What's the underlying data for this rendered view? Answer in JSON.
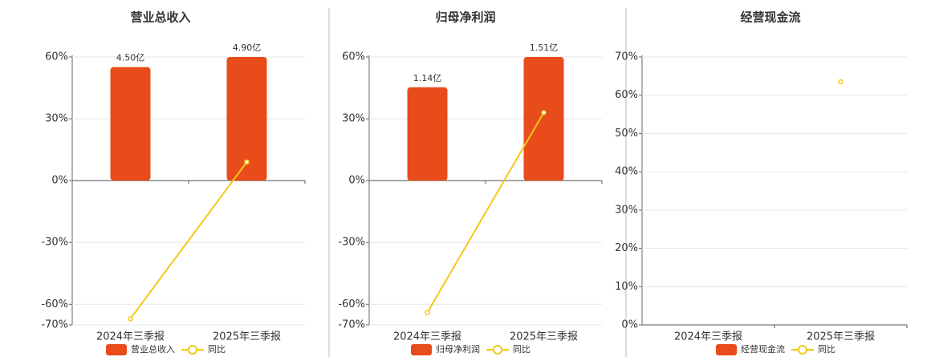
{
  "chart_data": [
    {
      "type": "bar",
      "title": "营业总收入",
      "categories": [
        "2024年三季报",
        "2025年三季报"
      ],
      "series": [
        {
          "name": "营业总收入",
          "color": "#e84c1a",
          "axis": "y2",
          "values": [
            4.5,
            4.9
          ],
          "value_labels": [
            "4.50亿",
            "4.90亿"
          ]
        },
        {
          "name": "同比",
          "color": "#f2c81a",
          "type": "line",
          "values": [
            -67,
            9
          ]
        }
      ],
      "ylim": [
        -70,
        60
      ],
      "yticks": [
        {
          "value": -70,
          "label": "-70%"
        },
        {
          "value": -60,
          "label": "-60%"
        },
        {
          "value": -30,
          "label": "-30%"
        },
        {
          "value": 0,
          "label": "0%"
        },
        {
          "value": 30,
          "label": "30%"
        },
        {
          "value": 60,
          "label": "60%"
        }
      ],
      "y2lim": [
        -5.72,
        4.9
      ],
      "grid": true
    },
    {
      "type": "bar",
      "title": "归母净利润",
      "categories": [
        "2024年三季报",
        "2025年三季报"
      ],
      "series": [
        {
          "name": "归母净利润",
          "color": "#e84c1a",
          "axis": "y2",
          "values": [
            1.14,
            1.51
          ],
          "value_labels": [
            "1.14亿",
            "1.51亿"
          ]
        },
        {
          "name": "同比",
          "color": "#f2c81a",
          "type": "line",
          "values": [
            -64,
            33
          ]
        }
      ],
      "ylim": [
        -70,
        60
      ],
      "yticks": [
        {
          "value": -70,
          "label": "-70%"
        },
        {
          "value": -60,
          "label": "-60%"
        },
        {
          "value": -30,
          "label": "-30%"
        },
        {
          "value": 0,
          "label": "0%"
        },
        {
          "value": 30,
          "label": "30%"
        },
        {
          "value": 60,
          "label": "60%"
        }
      ],
      "y2lim": [
        -1.76,
        1.51
      ],
      "grid": true
    },
    {
      "type": "bar",
      "title": "经营现金流",
      "categories": [
        "2024年三季报",
        "2025年三季报"
      ],
      "series": [
        {
          "name": "经营现金流",
          "color": "#e84c1a",
          "values": [
            null,
            null
          ]
        },
        {
          "name": "同比",
          "color": "#f2c81a",
          "type": "line",
          "values": [
            null,
            63.5
          ]
        }
      ],
      "ylim": [
        0,
        70
      ],
      "yticks": [
        {
          "value": 0,
          "label": "0%"
        },
        {
          "value": 10,
          "label": "10%"
        },
        {
          "value": 20,
          "label": "20%"
        },
        {
          "value": 30,
          "label": "30%"
        },
        {
          "value": 40,
          "label": "40%"
        },
        {
          "value": 50,
          "label": "50%"
        },
        {
          "value": 60,
          "label": "60%"
        },
        {
          "value": 70,
          "label": "70%"
        }
      ],
      "grid": true
    }
  ]
}
